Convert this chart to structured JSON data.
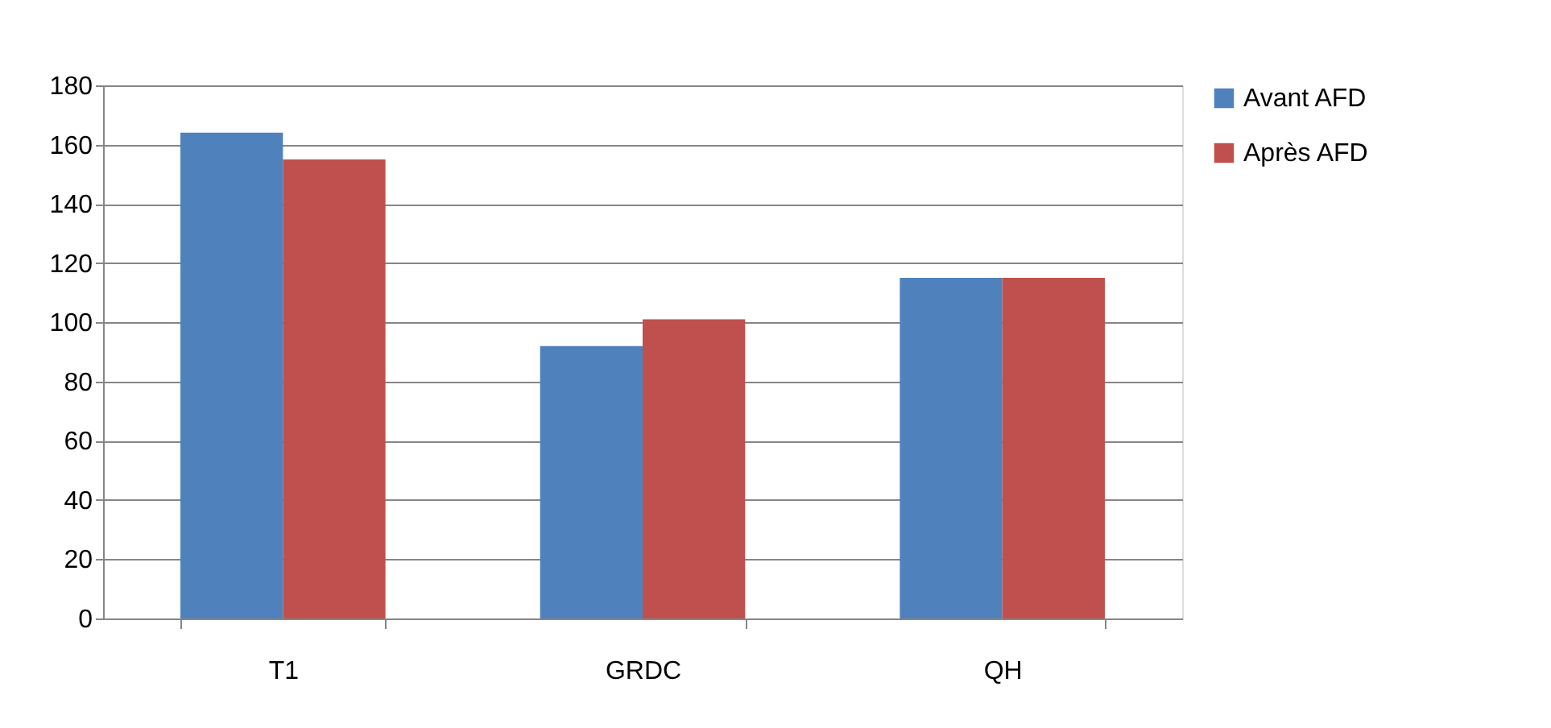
{
  "chart_data": {
    "type": "bar",
    "categories": [
      "T1",
      "GRDC",
      "QH"
    ],
    "series": [
      {
        "name": "Avant AFD",
        "color": "#4f81bd",
        "values": [
          164,
          92,
          115
        ]
      },
      {
        "name": "Après AFD",
        "color": "#c0504d",
        "values": [
          155,
          101,
          115
        ]
      }
    ],
    "ylim": [
      0,
      180
    ],
    "yticks": [
      0,
      20,
      40,
      60,
      80,
      100,
      120,
      140,
      160,
      180
    ],
    "grid": "y",
    "legend": "right"
  }
}
